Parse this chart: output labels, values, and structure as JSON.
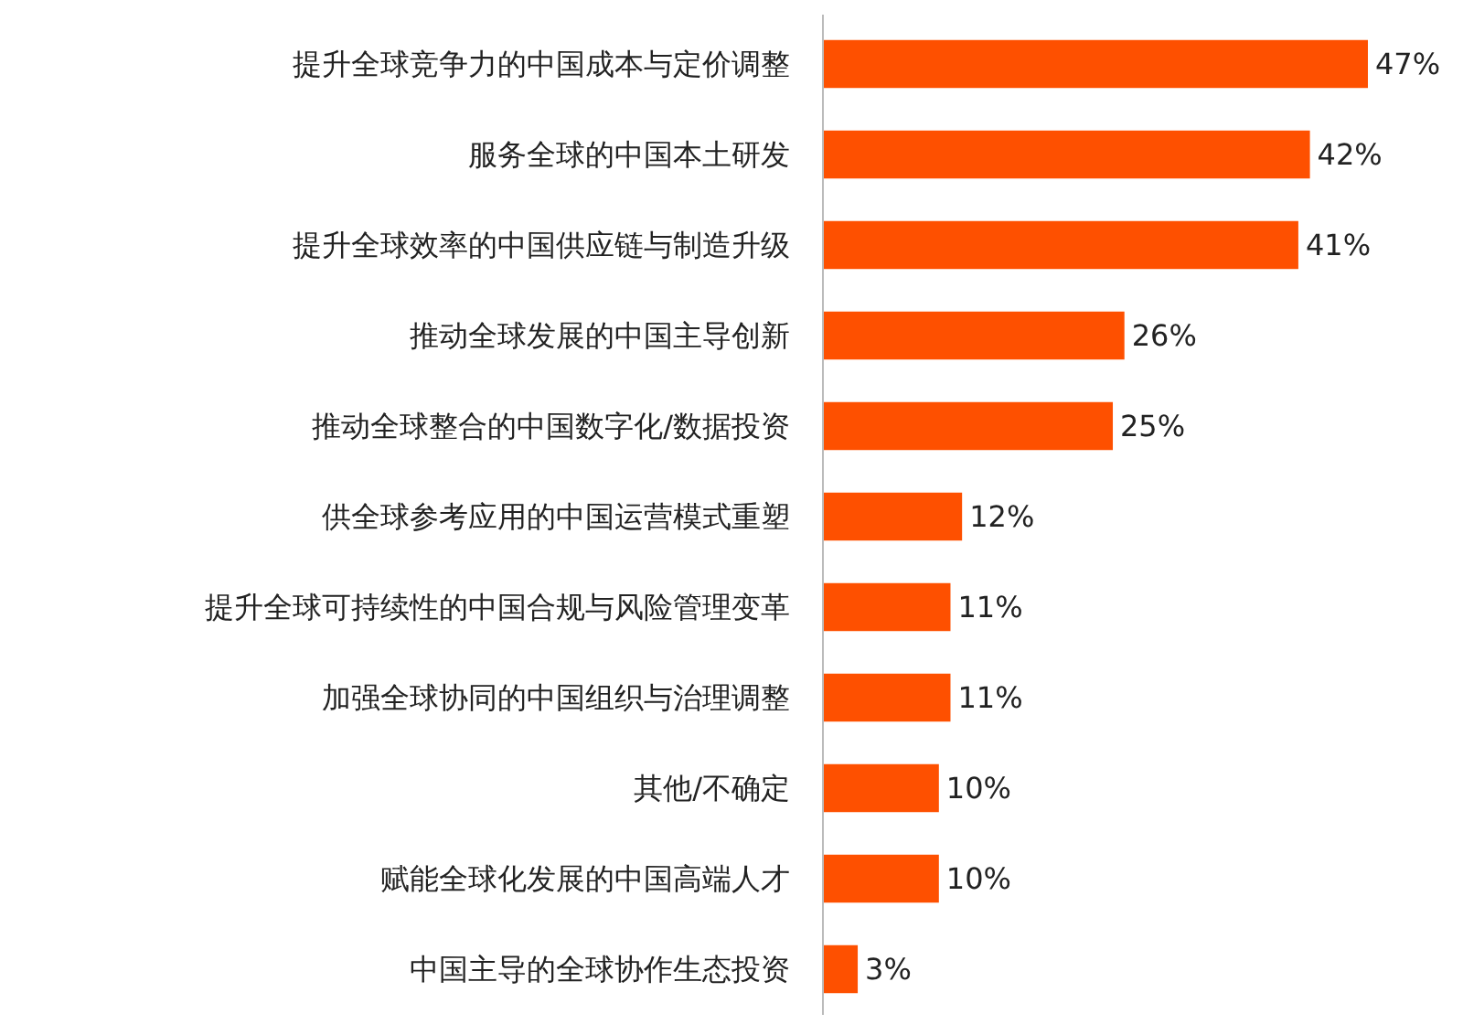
{
  "chart_data": {
    "type": "bar",
    "orientation": "horizontal",
    "categories": [
      "提升全球竞争力的中国成本与定价调整",
      "服务全球的中国本土研发",
      "提升全球效率的中国供应链与制造升级",
      "推动全球发展的中国主导创新",
      "推动全球整合的中国数字化/数据投资",
      "供全球参考应用的中国运营模式重塑",
      "提升全球可持续性的中国合规与风险管理变革",
      "加强全球协同的中国组织与治理调整",
      "其他/不确定",
      "赋能全球化发展的中国高端人才",
      "中国主导的全球协作生态投资"
    ],
    "values": [
      47,
      42,
      41,
      26,
      25,
      12,
      11,
      11,
      10,
      10,
      3
    ],
    "value_labels": [
      "47%",
      "42%",
      "41%",
      "26%",
      "25%",
      "12%",
      "11%",
      "11%",
      "10%",
      "10%",
      "3%"
    ],
    "color": "#fe5000"
  }
}
